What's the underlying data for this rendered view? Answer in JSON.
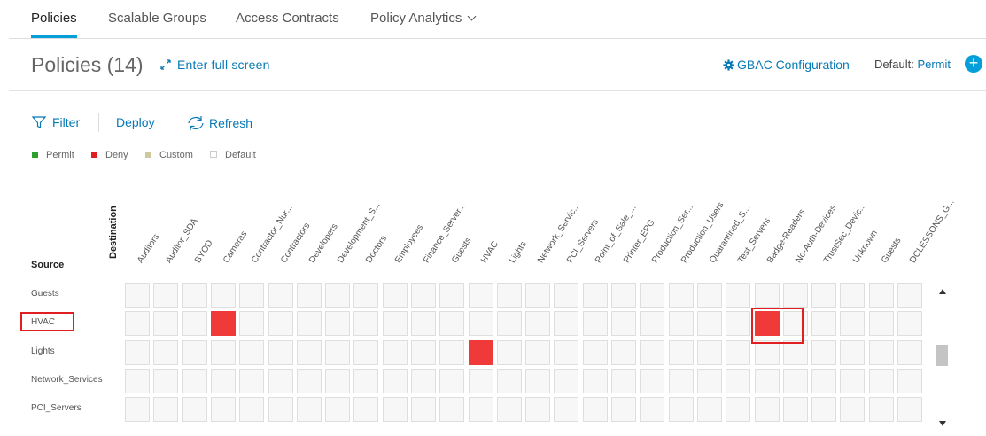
{
  "tabs": [
    {
      "label": "Policies",
      "active": true
    },
    {
      "label": "Scalable Groups"
    },
    {
      "label": "Access Contracts"
    },
    {
      "label": "Policy Analytics"
    }
  ],
  "header": {
    "title": "Policies (14)",
    "fullscreen_label": "Enter full screen",
    "gbac_label": "GBAC Configuration",
    "default_label": "Default:",
    "default_value": "Permit",
    "add_symbol": "+"
  },
  "toolbar": {
    "filter_label": "Filter",
    "deploy_label": "Deploy",
    "refresh_label": "Refresh"
  },
  "legend": [
    {
      "label": "Permit",
      "color": "#2e9e2e"
    },
    {
      "label": "Deny",
      "color": "#e02020"
    },
    {
      "label": "Custom",
      "color": "#cfc9a0"
    },
    {
      "label": "Default",
      "color": "#ffffff"
    }
  ],
  "matrix": {
    "destination_label": "Destination",
    "source_label": "Source",
    "columns": [
      "Auditors",
      "Auditor_SDA",
      "BYOD",
      "Cameras",
      "Contractor_Nur...",
      "Contractors",
      "Developers",
      "Development_S...",
      "Doctors",
      "Employees",
      "Finance_Server...",
      "Guests",
      "HVAC",
      "Lights",
      "Network_Servic...",
      "PCI_Servers",
      "Point_of_Sale_...",
      "Printer_EPG",
      "Production_Ser...",
      "Production_Users",
      "Quarantined_S...",
      "Test_Servers",
      "Badge-Readers",
      "No-Auth-Devices",
      "TrustSec_Devic...",
      "Unknown",
      "Guests",
      "DCLESSONS_G..."
    ],
    "rows": [
      "Guests",
      "HVAC",
      "Lights",
      "Network_Services",
      "PCI_Servers"
    ],
    "deny_cells": [
      {
        "row": 1,
        "col": 3
      },
      {
        "row": 1,
        "col": 22
      },
      {
        "row": 2,
        "col": 12
      }
    ],
    "highlighted_row": "HVAC"
  },
  "colors": {
    "accent": "#049fd9",
    "link": "#0779b5",
    "deny": "#f03a3a",
    "highlight": "#e02020"
  }
}
